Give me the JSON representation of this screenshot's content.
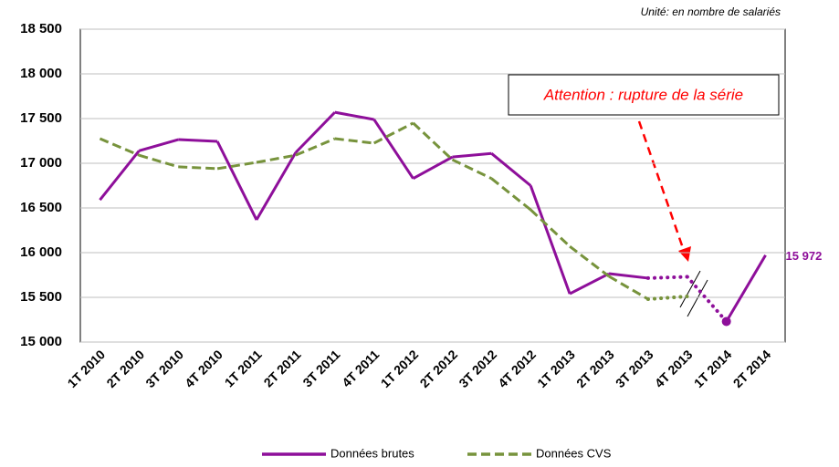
{
  "chart_data": {
    "type": "line",
    "unit_note": "Unité: en nombre de salariés",
    "annotation": "Attention : rupture de la série",
    "categories": [
      "1T 2010",
      "2T 2010",
      "3T 2010",
      "4T 2010",
      "1T 2011",
      "2T 2011",
      "3T 2011",
      "4T 2011",
      "1T 2012",
      "2T 2012",
      "3T 2012",
      "4T 2012",
      "1T 2013",
      "2T 2013",
      "3T 2013",
      "4T 2013",
      "1T 2014",
      "2T 2014"
    ],
    "series": [
      {
        "name": "Données brutes",
        "color": "#8e0f9a",
        "dash": "solid",
        "dotted_segments": [
          14,
          15
        ],
        "marker_points": [
          16
        ],
        "values": [
          16590,
          17140,
          17265,
          17245,
          16367,
          17120,
          17570,
          17490,
          16830,
          17070,
          17110,
          16750,
          15540,
          15765,
          15715,
          15730,
          15230,
          15972
        ],
        "value_labels": [
          null,
          null,
          null,
          null,
          null,
          null,
          null,
          null,
          null,
          null,
          null,
          null,
          null,
          null,
          null,
          null,
          null,
          "15 972"
        ]
      },
      {
        "name": "Données CVS",
        "color": "#77933c",
        "dash": "dashed",
        "dotted_segments": [
          14
        ],
        "values": [
          17275,
          17090,
          16960,
          16940,
          17010,
          17090,
          17275,
          17225,
          17450,
          17040,
          16830,
          16480,
          16070,
          15735,
          15480,
          15510,
          null,
          null
        ]
      }
    ],
    "ylim": [
      15000,
      18500
    ],
    "yticks": [
      {
        "value": 15000,
        "label": "15 000"
      },
      {
        "value": 15500,
        "label": "15 500"
      },
      {
        "value": 16000,
        "label": "16 000"
      },
      {
        "value": 16500,
        "label": "16 500"
      },
      {
        "value": 17000,
        "label": "17 000"
      },
      {
        "value": 17500,
        "label": "17 500"
      },
      {
        "value": 18000,
        "label": "18 000"
      },
      {
        "value": 18500,
        "label": "18 500"
      }
    ],
    "grid": true,
    "legend": "bottom"
  }
}
